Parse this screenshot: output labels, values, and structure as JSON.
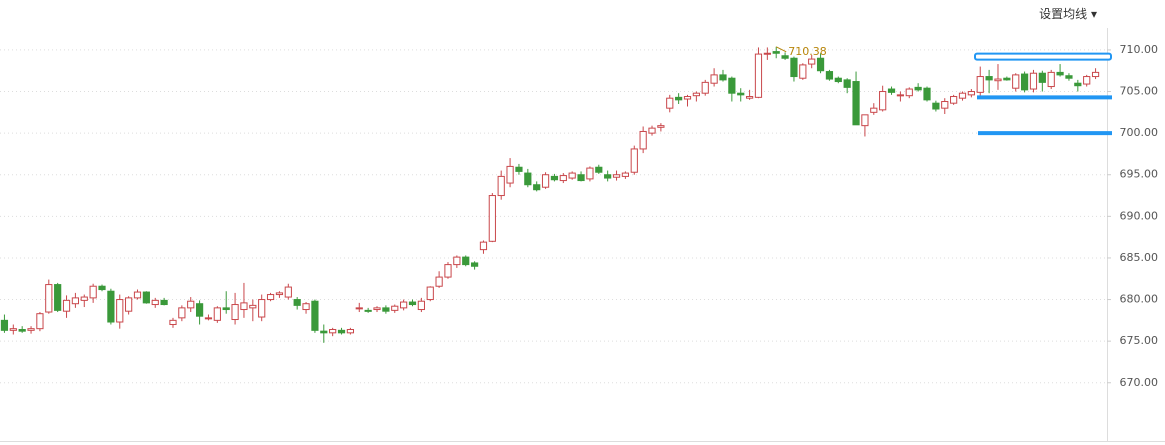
{
  "chart_data": {
    "type": "candlestick",
    "menu_label": "设置均线 ▾",
    "up_color": "#c9474b",
    "down_color": "#3a993a",
    "line_color": "#2196f3",
    "max_color": "#b8860b",
    "ylim": [
      663,
      716
    ],
    "yticks": [
      {
        "value": 670,
        "label": "670.00"
      },
      {
        "value": 675,
        "label": "675.00"
      },
      {
        "value": 680,
        "label": "680.00"
      },
      {
        "value": 685,
        "label": "685.00"
      },
      {
        "value": 690,
        "label": "690.00"
      },
      {
        "value": 695,
        "label": "695.00"
      },
      {
        "value": 700,
        "label": "700.00"
      },
      {
        "value": 705,
        "label": "705.00"
      },
      {
        "value": 710,
        "label": "710.00"
      }
    ],
    "grid": true,
    "max_label": 710.38,
    "price_lines": [
      709.2,
      704.3,
      700.0
    ],
    "ohlc": [
      [
        677.5,
        678.2,
        676.0,
        676.3
      ],
      [
        676.3,
        677.0,
        675.8,
        676.5
      ],
      [
        676.4,
        676.8,
        676.0,
        676.2
      ],
      [
        676.3,
        676.8,
        675.9,
        676.5
      ],
      [
        676.5,
        678.5,
        676.2,
        678.3
      ],
      [
        678.5,
        682.4,
        678.3,
        681.8
      ],
      [
        681.8,
        682.0,
        678.5,
        678.7
      ],
      [
        678.6,
        680.5,
        677.8,
        679.9
      ],
      [
        679.5,
        680.8,
        679.0,
        680.2
      ],
      [
        679.9,
        680.6,
        679.1,
        680.3
      ],
      [
        680.2,
        681.9,
        679.6,
        681.6
      ],
      [
        681.6,
        681.8,
        681.0,
        681.2
      ],
      [
        681.0,
        681.3,
        677.0,
        677.3
      ],
      [
        677.3,
        680.6,
        676.5,
        680.0
      ],
      [
        678.6,
        680.4,
        678.2,
        680.2
      ],
      [
        680.2,
        681.2,
        680.0,
        680.9
      ],
      [
        680.9,
        681.0,
        679.5,
        679.6
      ],
      [
        679.4,
        680.2,
        679.0,
        679.9
      ],
      [
        679.9,
        680.2,
        679.3,
        679.4
      ],
      [
        677.0,
        677.8,
        676.6,
        677.5
      ],
      [
        677.8,
        679.3,
        677.4,
        679.0
      ],
      [
        679.0,
        680.3,
        678.5,
        679.8
      ],
      [
        679.5,
        679.9,
        677.0,
        678.0
      ],
      [
        677.7,
        678.2,
        677.5,
        677.8
      ],
      [
        677.5,
        679.2,
        677.2,
        679.0
      ],
      [
        679.0,
        681.0,
        678.3,
        678.8
      ],
      [
        677.6,
        680.8,
        677.0,
        679.4
      ],
      [
        678.8,
        682.0,
        677.8,
        679.6
      ],
      [
        679.0,
        680.0,
        677.4,
        679.3
      ],
      [
        677.9,
        680.6,
        677.4,
        680.0
      ],
      [
        680.0,
        680.8,
        679.8,
        680.6
      ],
      [
        680.6,
        681.0,
        680.2,
        680.8
      ],
      [
        680.3,
        681.9,
        680.0,
        681.5
      ],
      [
        680.0,
        680.3,
        678.8,
        679.3
      ],
      [
        678.8,
        679.7,
        678.3,
        679.5
      ],
      [
        679.8,
        680.0,
        676.0,
        676.3
      ],
      [
        676.2,
        677.0,
        674.8,
        676.0
      ],
      [
        676.0,
        676.6,
        675.6,
        676.4
      ],
      [
        676.3,
        676.6,
        675.8,
        676.0
      ],
      [
        676.0,
        676.6,
        675.8,
        676.4
      ],
      [
        678.9,
        679.6,
        678.5,
        679.0
      ],
      [
        678.7,
        679.0,
        678.4,
        678.6
      ],
      [
        678.8,
        679.2,
        678.5,
        679.0
      ],
      [
        679.0,
        679.3,
        678.3,
        678.6
      ],
      [
        678.7,
        679.4,
        678.4,
        679.2
      ],
      [
        679.0,
        680.0,
        678.7,
        679.7
      ],
      [
        679.7,
        680.0,
        679.2,
        679.4
      ],
      [
        678.8,
        680.2,
        678.5,
        679.8
      ],
      [
        680.0,
        681.6,
        679.8,
        681.5
      ],
      [
        681.6,
        683.4,
        681.4,
        682.7
      ],
      [
        682.7,
        684.5,
        682.5,
        684.2
      ],
      [
        684.2,
        685.3,
        683.8,
        685.1
      ],
      [
        685.1,
        685.3,
        684.0,
        684.2
      ],
      [
        684.4,
        684.6,
        683.6,
        684.0
      ],
      [
        686.0,
        687.1,
        685.5,
        686.9
      ],
      [
        687.0,
        692.8,
        686.9,
        692.5
      ],
      [
        692.5,
        695.5,
        692.0,
        694.8
      ],
      [
        694.0,
        697.0,
        693.5,
        696.0
      ],
      [
        695.9,
        696.3,
        695.0,
        695.4
      ],
      [
        695.2,
        695.7,
        693.5,
        693.8
      ],
      [
        693.8,
        694.2,
        693.0,
        693.2
      ],
      [
        693.5,
        695.3,
        693.3,
        695.0
      ],
      [
        694.8,
        695.1,
        694.2,
        694.4
      ],
      [
        694.3,
        695.2,
        694.0,
        694.9
      ],
      [
        694.6,
        695.4,
        694.4,
        695.2
      ],
      [
        695.0,
        695.4,
        694.2,
        694.3
      ],
      [
        694.5,
        696.0,
        694.2,
        695.8
      ],
      [
        695.9,
        696.2,
        695.1,
        695.3
      ],
      [
        695.0,
        695.5,
        694.2,
        694.6
      ],
      [
        694.7,
        695.5,
        694.3,
        695.0
      ],
      [
        694.8,
        695.4,
        694.5,
        695.2
      ],
      [
        695.3,
        698.5,
        695.0,
        698.1
      ],
      [
        698.1,
        700.8,
        697.6,
        700.2
      ],
      [
        700.0,
        700.9,
        699.7,
        700.6
      ],
      [
        700.7,
        701.2,
        700.2,
        700.9
      ],
      [
        703.0,
        704.6,
        702.5,
        704.2
      ],
      [
        704.3,
        704.8,
        703.5,
        704.0
      ],
      [
        704.1,
        704.6,
        703.2,
        704.4
      ],
      [
        704.5,
        705.0,
        703.8,
        704.8
      ],
      [
        704.8,
        706.4,
        704.5,
        706.1
      ],
      [
        706.0,
        707.8,
        705.6,
        707.0
      ],
      [
        707.0,
        707.6,
        706.2,
        706.4
      ],
      [
        706.6,
        706.8,
        703.8,
        704.8
      ],
      [
        704.8,
        705.4,
        703.8,
        704.6
      ],
      [
        704.2,
        705.2,
        704.0,
        704.4
      ],
      [
        704.3,
        710.3,
        704.2,
        709.5
      ],
      [
        709.5,
        710.3,
        708.8,
        709.6
      ],
      [
        709.8,
        710.38,
        709.0,
        709.6
      ],
      [
        709.3,
        709.7,
        708.8,
        709.0
      ],
      [
        709.0,
        709.2,
        706.2,
        706.8
      ],
      [
        706.6,
        708.4,
        706.4,
        708.2
      ],
      [
        708.3,
        709.4,
        707.8,
        708.9
      ],
      [
        709.0,
        709.6,
        707.2,
        707.5
      ],
      [
        707.4,
        707.6,
        706.3,
        706.5
      ],
      [
        706.6,
        706.8,
        706.0,
        706.2
      ],
      [
        706.4,
        706.6,
        704.8,
        705.5
      ],
      [
        706.2,
        707.4,
        701.0,
        701.0
      ],
      [
        700.9,
        702.2,
        699.6,
        702.2
      ],
      [
        702.5,
        703.6,
        702.2,
        703.0
      ],
      [
        702.8,
        705.7,
        702.6,
        705.0
      ],
      [
        705.3,
        705.6,
        704.6,
        704.9
      ],
      [
        704.5,
        705.0,
        703.8,
        704.6
      ],
      [
        704.5,
        705.5,
        704.2,
        705.3
      ],
      [
        705.5,
        706.0,
        705.0,
        705.2
      ],
      [
        705.4,
        705.6,
        703.8,
        704.0
      ],
      [
        703.6,
        703.9,
        702.6,
        702.9
      ],
      [
        703.0,
        704.2,
        702.3,
        703.8
      ],
      [
        703.6,
        704.6,
        703.4,
        704.4
      ],
      [
        704.2,
        705.0,
        703.9,
        704.8
      ],
      [
        704.6,
        705.3,
        704.3,
        705.0
      ],
      [
        704.9,
        708.0,
        704.5,
        706.8
      ],
      [
        706.8,
        707.6,
        704.8,
        706.4
      ],
      [
        706.3,
        708.3,
        705.2,
        706.5
      ],
      [
        706.6,
        706.8,
        706.3,
        706.4
      ],
      [
        705.4,
        707.2,
        705.0,
        707.0
      ],
      [
        707.1,
        707.4,
        704.9,
        705.2
      ],
      [
        705.3,
        707.6,
        704.9,
        707.2
      ],
      [
        707.2,
        707.5,
        705.0,
        706.1
      ],
      [
        705.6,
        707.6,
        705.3,
        707.3
      ],
      [
        707.3,
        708.3,
        706.8,
        707.0
      ],
      [
        706.9,
        707.2,
        706.3,
        706.6
      ],
      [
        706.0,
        706.4,
        705.0,
        705.7
      ],
      [
        705.9,
        707.0,
        705.6,
        706.8
      ],
      [
        706.8,
        707.8,
        706.5,
        707.3
      ]
    ]
  }
}
